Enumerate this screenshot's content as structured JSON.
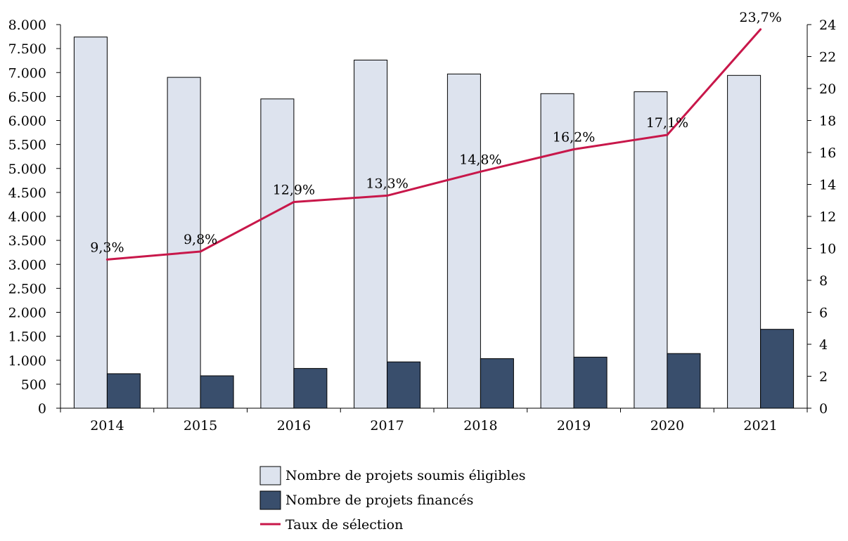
{
  "chart_data": {
    "type": "bar",
    "categories": [
      "2014",
      "2015",
      "2016",
      "2017",
      "2018",
      "2019",
      "2020",
      "2021"
    ],
    "series": [
      {
        "name": "Nombre de projets soumis éligibles",
        "type": "bar",
        "axis": "left",
        "color": "#dde3ee",
        "values": [
          7740,
          6900,
          6450,
          7260,
          6970,
          6560,
          6600,
          6940
        ]
      },
      {
        "name": "Nombre de projets financés",
        "type": "bar",
        "axis": "left",
        "color": "#394e6c",
        "values": [
          720,
          675,
          830,
          965,
          1035,
          1065,
          1140,
          1645
        ]
      },
      {
        "name": "Taux de sélection",
        "type": "line",
        "axis": "right",
        "color": "#c8174a",
        "values": [
          9.3,
          9.8,
          12.9,
          13.3,
          14.8,
          16.2,
          17.1,
          23.7
        ],
        "labels": [
          "9,3%",
          "9,8%",
          "12,9%",
          "13,3%",
          "14,8%",
          "16,2%",
          "17,1%",
          "23,7%"
        ]
      }
    ],
    "left_axis": {
      "range": [
        0,
        8000
      ],
      "ticks": [
        0,
        500,
        1000,
        1500,
        2000,
        2500,
        3000,
        3500,
        4000,
        4500,
        5000,
        5500,
        6000,
        6500,
        7000,
        7500,
        8000
      ],
      "tick_labels": [
        "0",
        "500",
        "1.000",
        "1.500",
        "2.000",
        "2.500",
        "3.000",
        "3.500",
        "4.000",
        "4.500",
        "5.000",
        "5.500",
        "6.000",
        "6.500",
        "7.000",
        "7.500",
        "8.000"
      ]
    },
    "right_axis": {
      "range": [
        0,
        24
      ],
      "ticks": [
        0,
        2,
        4,
        6,
        8,
        10,
        12,
        14,
        16,
        18,
        20,
        22,
        24
      ],
      "tick_labels": [
        "0",
        "2",
        "4",
        "6",
        "8",
        "10",
        "12",
        "14",
        "16",
        "18",
        "20",
        "22",
        "24"
      ]
    },
    "grid": false,
    "legend_position": "bottom-center"
  }
}
